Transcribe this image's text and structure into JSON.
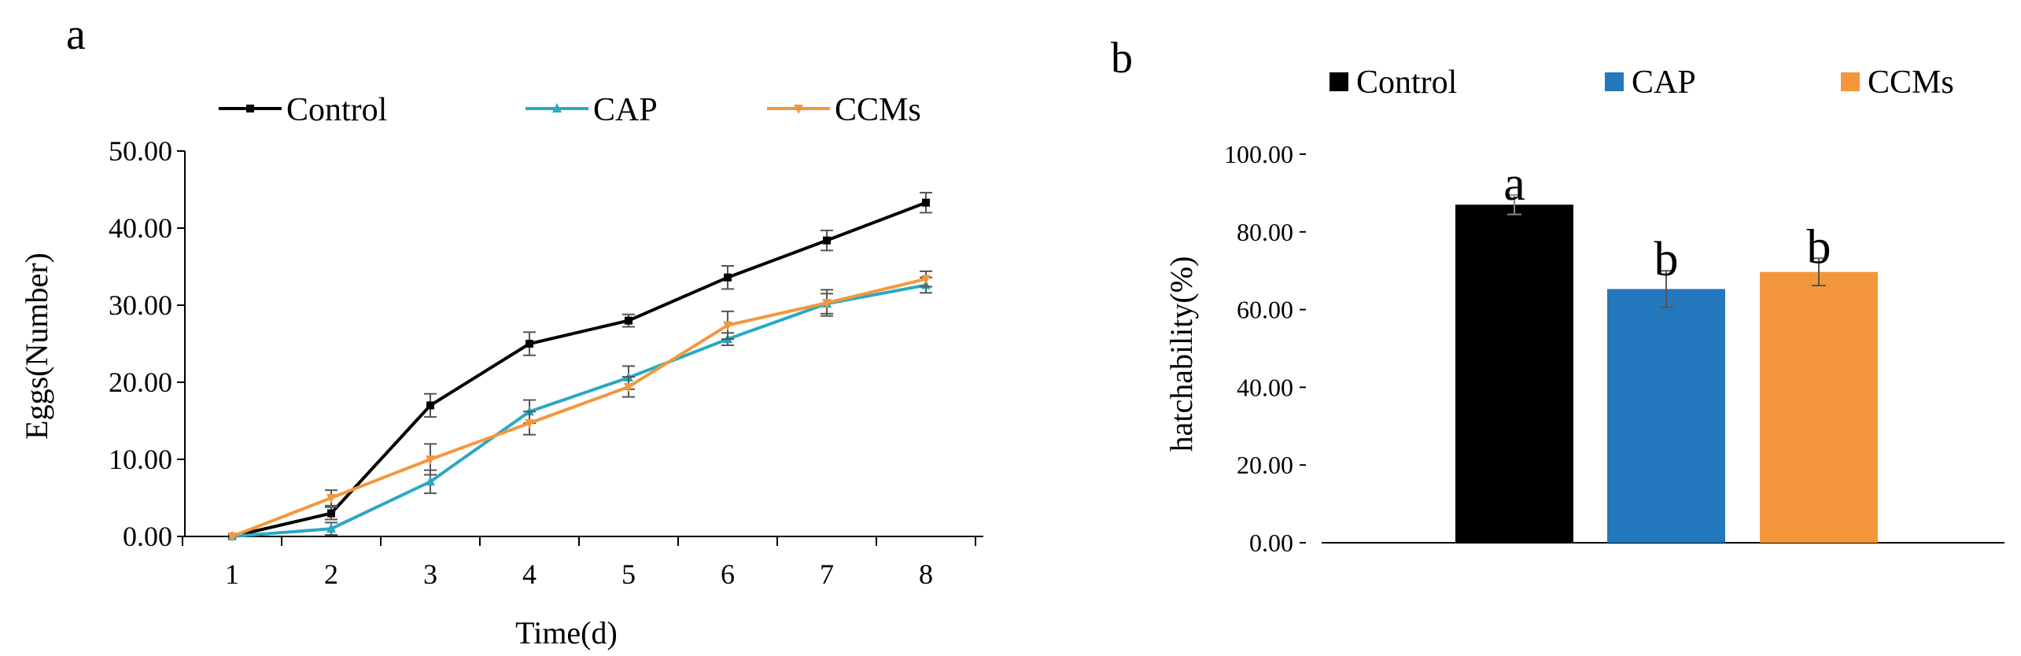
{
  "chart_data": [
    {
      "panel_label": "a",
      "type": "line",
      "xlabel": "Time(d)",
      "ylabel": "Eggs(Number)",
      "x": [
        1,
        2,
        3,
        4,
        5,
        6,
        7,
        8
      ],
      "x_tick_labels": [
        "1",
        "2",
        "3",
        "4",
        "5",
        "6",
        "7",
        "8"
      ],
      "ylim": [
        0,
        50
      ],
      "y_tick_labels": [
        "0.00",
        "10.00",
        "20.00",
        "30.00",
        "40.00",
        "50.00"
      ],
      "legend_position": "top",
      "series": [
        {
          "name": "Control",
          "color": "#000000",
          "marker": "square",
          "values": [
            0,
            3,
            17,
            25,
            28,
            33.6,
            38.4,
            43.3
          ],
          "errors": [
            0,
            0.8,
            1.5,
            1.5,
            0.8,
            1.5,
            1.3,
            1.3
          ]
        },
        {
          "name": "CAP",
          "color": "#2aa8c4",
          "marker": "triangle",
          "values": [
            0,
            1,
            7.1,
            16.2,
            20.6,
            25.6,
            30.2,
            32.6
          ],
          "errors": [
            0,
            0.8,
            1.5,
            1.5,
            1.5,
            0.8,
            1.3,
            1.0
          ]
        },
        {
          "name": "CCMs",
          "color": "#f4973c",
          "marker": "triangle-down",
          "values": [
            0,
            5,
            10,
            14.7,
            19.4,
            27.4,
            30.3,
            33.4
          ],
          "errors": [
            0,
            1.0,
            2.0,
            1.5,
            1.3,
            1.8,
            1.7,
            1.0
          ]
        }
      ]
    },
    {
      "panel_label": "b",
      "type": "bar",
      "xlabel": "",
      "ylabel": "hatchability(%)",
      "categories": [
        "Control",
        "CAP",
        "CCMs"
      ],
      "values": [
        87,
        65.3,
        69.7
      ],
      "errors": [
        2.5,
        4.7,
        3.5
      ],
      "colors": [
        "#000000",
        "#2478be",
        "#f4973c"
      ],
      "significance": [
        "a",
        "b",
        "b"
      ],
      "ylim": [
        0,
        100
      ],
      "y_tick_labels": [
        "0.00",
        "20.00",
        "40.00",
        "60.00",
        "80.00",
        "100.00"
      ],
      "legend_position": "top"
    }
  ]
}
